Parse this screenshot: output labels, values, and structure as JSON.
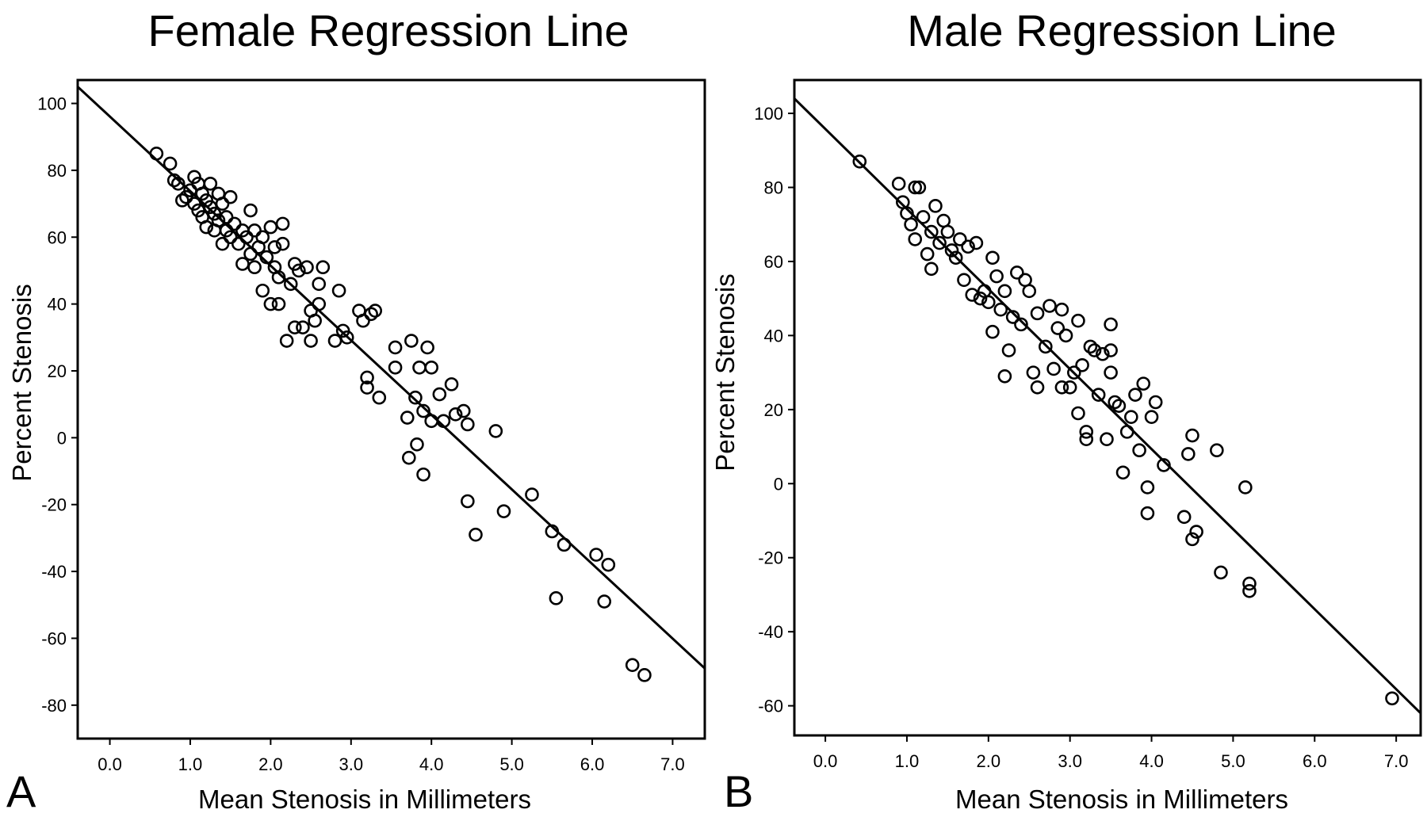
{
  "chart_data": [
    {
      "type": "scatter",
      "panel": "A",
      "title": "Female Regression Line",
      "xlabel": "Mean Stenosis in Millimeters",
      "ylabel": "Percent Stenosis",
      "xlim": [
        -0.4,
        7.4
      ],
      "ylim": [
        -90,
        107
      ],
      "x_ticks": [
        0.0,
        1.0,
        2.0,
        3.0,
        4.0,
        5.0,
        6.0,
        7.0
      ],
      "x_tick_labels": [
        "0.0",
        "1.0",
        "2.0",
        "3.0",
        "4.0",
        "5.0",
        "6.0",
        "7.0"
      ],
      "y_ticks": [
        100,
        80,
        60,
        40,
        20,
        0,
        -20,
        -40,
        -60,
        -80
      ],
      "y_tick_labels": [
        "100",
        "80",
        "60",
        "40",
        "20",
        "0",
        "-20",
        "-40",
        "-60",
        "-80"
      ],
      "regression_line": [
        [
          -0.4,
          105
        ],
        [
          7.4,
          -69
        ]
      ],
      "points": [
        [
          0.58,
          85
        ],
        [
          0.75,
          82
        ],
        [
          0.8,
          77
        ],
        [
          0.85,
          76
        ],
        [
          0.9,
          71
        ],
        [
          0.95,
          72
        ],
        [
          1.0,
          74
        ],
        [
          1.05,
          78
        ],
        [
          1.05,
          70
        ],
        [
          1.1,
          76
        ],
        [
          1.1,
          68
        ],
        [
          1.15,
          73
        ],
        [
          1.15,
          66
        ],
        [
          1.2,
          71
        ],
        [
          1.2,
          63
        ],
        [
          1.25,
          76
        ],
        [
          1.25,
          69
        ],
        [
          1.3,
          67
        ],
        [
          1.3,
          62
        ],
        [
          1.35,
          73
        ],
        [
          1.35,
          65
        ],
        [
          1.4,
          70
        ],
        [
          1.4,
          58
        ],
        [
          1.45,
          62
        ],
        [
          1.45,
          66
        ],
        [
          1.5,
          72
        ],
        [
          1.5,
          60
        ],
        [
          1.55,
          64
        ],
        [
          1.6,
          58
        ],
        [
          1.65,
          62
        ],
        [
          1.65,
          52
        ],
        [
          1.7,
          60
        ],
        [
          1.75,
          68
        ],
        [
          1.75,
          55
        ],
        [
          1.8,
          62
        ],
        [
          1.8,
          51
        ],
        [
          1.85,
          57
        ],
        [
          1.9,
          44
        ],
        [
          1.9,
          60
        ],
        [
          1.95,
          54
        ],
        [
          2.0,
          40
        ],
        [
          2.0,
          63
        ],
        [
          2.05,
          51
        ],
        [
          2.05,
          57
        ],
        [
          2.1,
          40
        ],
        [
          2.1,
          48
        ],
        [
          2.15,
          64
        ],
        [
          2.15,
          58
        ],
        [
          2.2,
          29
        ],
        [
          2.25,
          46
        ],
        [
          2.3,
          52
        ],
        [
          2.3,
          33
        ],
        [
          2.35,
          50
        ],
        [
          2.4,
          33
        ],
        [
          2.45,
          51
        ],
        [
          2.5,
          29
        ],
        [
          2.5,
          38
        ],
        [
          2.55,
          35
        ],
        [
          2.6,
          46
        ],
        [
          2.6,
          40
        ],
        [
          2.65,
          51
        ],
        [
          2.85,
          44
        ],
        [
          2.8,
          29
        ],
        [
          2.9,
          32
        ],
        [
          2.95,
          30
        ],
        [
          3.1,
          38
        ],
        [
          3.15,
          35
        ],
        [
          3.2,
          18
        ],
        [
          3.2,
          15
        ],
        [
          3.25,
          37
        ],
        [
          3.3,
          38
        ],
        [
          3.35,
          12
        ],
        [
          3.55,
          27
        ],
        [
          3.55,
          21
        ],
        [
          3.7,
          6
        ],
        [
          3.72,
          -6
        ],
        [
          3.75,
          29
        ],
        [
          3.8,
          12
        ],
        [
          3.82,
          -2
        ],
        [
          3.85,
          21
        ],
        [
          3.9,
          8
        ],
        [
          3.9,
          -11
        ],
        [
          3.95,
          27
        ],
        [
          4.0,
          21
        ],
        [
          4.0,
          5
        ],
        [
          4.1,
          13
        ],
        [
          4.15,
          5
        ],
        [
          4.25,
          16
        ],
        [
          4.3,
          7
        ],
        [
          4.4,
          8
        ],
        [
          4.45,
          4
        ],
        [
          4.45,
          -19
        ],
        [
          4.55,
          -29
        ],
        [
          4.8,
          2
        ],
        [
          4.9,
          -22
        ],
        [
          5.25,
          -17
        ],
        [
          5.5,
          -28
        ],
        [
          5.55,
          -48
        ],
        [
          5.65,
          -32
        ],
        [
          6.05,
          -35
        ],
        [
          6.15,
          -49
        ],
        [
          6.2,
          -38
        ],
        [
          6.5,
          -68
        ],
        [
          6.65,
          -71
        ]
      ]
    },
    {
      "type": "scatter",
      "panel": "B",
      "title": "Male Regression Line",
      "xlabel": "Mean Stenosis in Millimeters",
      "ylabel": "Percent Stenosis",
      "xlim": [
        -0.38,
        7.3
      ],
      "ylim": [
        -68,
        109
      ],
      "x_ticks": [
        0.0,
        1.0,
        2.0,
        3.0,
        4.0,
        5.0,
        6.0,
        7.0
      ],
      "x_tick_labels": [
        "0.0",
        "1.0",
        "2.0",
        "3.0",
        "4.0",
        "5.0",
        "6.0",
        "7.0"
      ],
      "y_ticks": [
        100,
        80,
        60,
        40,
        20,
        0,
        -20,
        -40,
        -60
      ],
      "y_tick_labels": [
        "100",
        "80",
        "60",
        "40",
        "20",
        "0",
        "-20",
        "-40",
        "-60"
      ],
      "regression_line": [
        [
          -0.38,
          104
        ],
        [
          7.3,
          -62
        ]
      ],
      "points": [
        [
          0.42,
          87
        ],
        [
          0.9,
          81
        ],
        [
          0.95,
          76
        ],
        [
          1.0,
          73
        ],
        [
          1.05,
          70
        ],
        [
          1.1,
          80
        ],
        [
          1.1,
          66
        ],
        [
          1.15,
          80
        ],
        [
          1.2,
          72
        ],
        [
          1.25,
          62
        ],
        [
          1.3,
          68
        ],
        [
          1.3,
          58
        ],
        [
          1.35,
          75
        ],
        [
          1.4,
          65
        ],
        [
          1.45,
          71
        ],
        [
          1.5,
          68
        ],
        [
          1.55,
          63
        ],
        [
          1.6,
          61
        ],
        [
          1.65,
          66
        ],
        [
          1.7,
          55
        ],
        [
          1.75,
          64
        ],
        [
          1.8,
          51
        ],
        [
          1.85,
          65
        ],
        [
          1.9,
          50
        ],
        [
          1.95,
          52
        ],
        [
          2.0,
          49
        ],
        [
          2.05,
          61
        ],
        [
          2.05,
          41
        ],
        [
          2.1,
          56
        ],
        [
          2.15,
          47
        ],
        [
          2.2,
          29
        ],
        [
          2.2,
          52
        ],
        [
          2.25,
          36
        ],
        [
          2.3,
          45
        ],
        [
          2.35,
          57
        ],
        [
          2.4,
          43
        ],
        [
          2.45,
          55
        ],
        [
          2.5,
          52
        ],
        [
          2.55,
          30
        ],
        [
          2.6,
          26
        ],
        [
          2.6,
          46
        ],
        [
          2.7,
          37
        ],
        [
          2.75,
          48
        ],
        [
          2.8,
          31
        ],
        [
          2.85,
          42
        ],
        [
          2.9,
          47
        ],
        [
          2.9,
          26
        ],
        [
          2.95,
          40
        ],
        [
          3.0,
          26
        ],
        [
          3.05,
          30
        ],
        [
          3.1,
          44
        ],
        [
          3.1,
          19
        ],
        [
          3.15,
          32
        ],
        [
          3.2,
          14
        ],
        [
          3.2,
          12
        ],
        [
          3.25,
          37
        ],
        [
          3.3,
          36
        ],
        [
          3.35,
          24
        ],
        [
          3.4,
          35
        ],
        [
          3.45,
          12
        ],
        [
          3.5,
          36
        ],
        [
          3.5,
          30
        ],
        [
          3.5,
          43
        ],
        [
          3.55,
          22
        ],
        [
          3.6,
          21
        ],
        [
          3.65,
          3
        ],
        [
          3.7,
          14
        ],
        [
          3.75,
          18
        ],
        [
          3.8,
          24
        ],
        [
          3.85,
          9
        ],
        [
          3.9,
          27
        ],
        [
          3.95,
          -1
        ],
        [
          3.95,
          -8
        ],
        [
          4.0,
          18
        ],
        [
          4.05,
          22
        ],
        [
          4.15,
          5
        ],
        [
          4.4,
          -9
        ],
        [
          4.45,
          8
        ],
        [
          4.5,
          13
        ],
        [
          4.5,
          -15
        ],
        [
          4.55,
          -13
        ],
        [
          4.8,
          9
        ],
        [
          4.85,
          -24
        ],
        [
          5.15,
          -1
        ],
        [
          5.2,
          -27
        ],
        [
          5.2,
          -29
        ],
        [
          6.95,
          -58
        ]
      ]
    }
  ],
  "panels": {
    "a": {
      "letter": "A"
    },
    "b": {
      "letter": "B"
    }
  }
}
